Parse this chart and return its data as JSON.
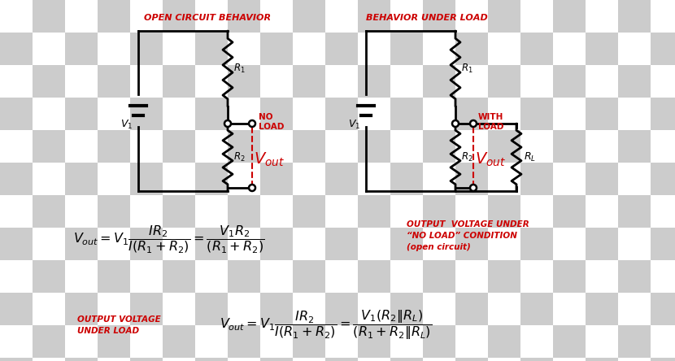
{
  "bg_checker_light": "#ffffff",
  "bg_checker_dark": "#cccccc",
  "checker_size": 40,
  "circuit_color": "#000000",
  "red_color": "#cc0000",
  "fig_width": 8.3,
  "fig_height": 4.44,
  "title1": "OPEN CIRCUIT BEHAVIOR",
  "title2": "BEHAVIOR UNDER LOAD",
  "label_no_load": "NO\nLOAD",
  "label_with_load": "WITH\nLOAD",
  "label_output_voltage_under": "OUTPUT  VOLTAGE UNDER\n“NO LOAD” CONDITION\n(open circuit)",
  "label_output_voltage_load": "OUTPUT VOLTAGE\nUNDER LOAD"
}
